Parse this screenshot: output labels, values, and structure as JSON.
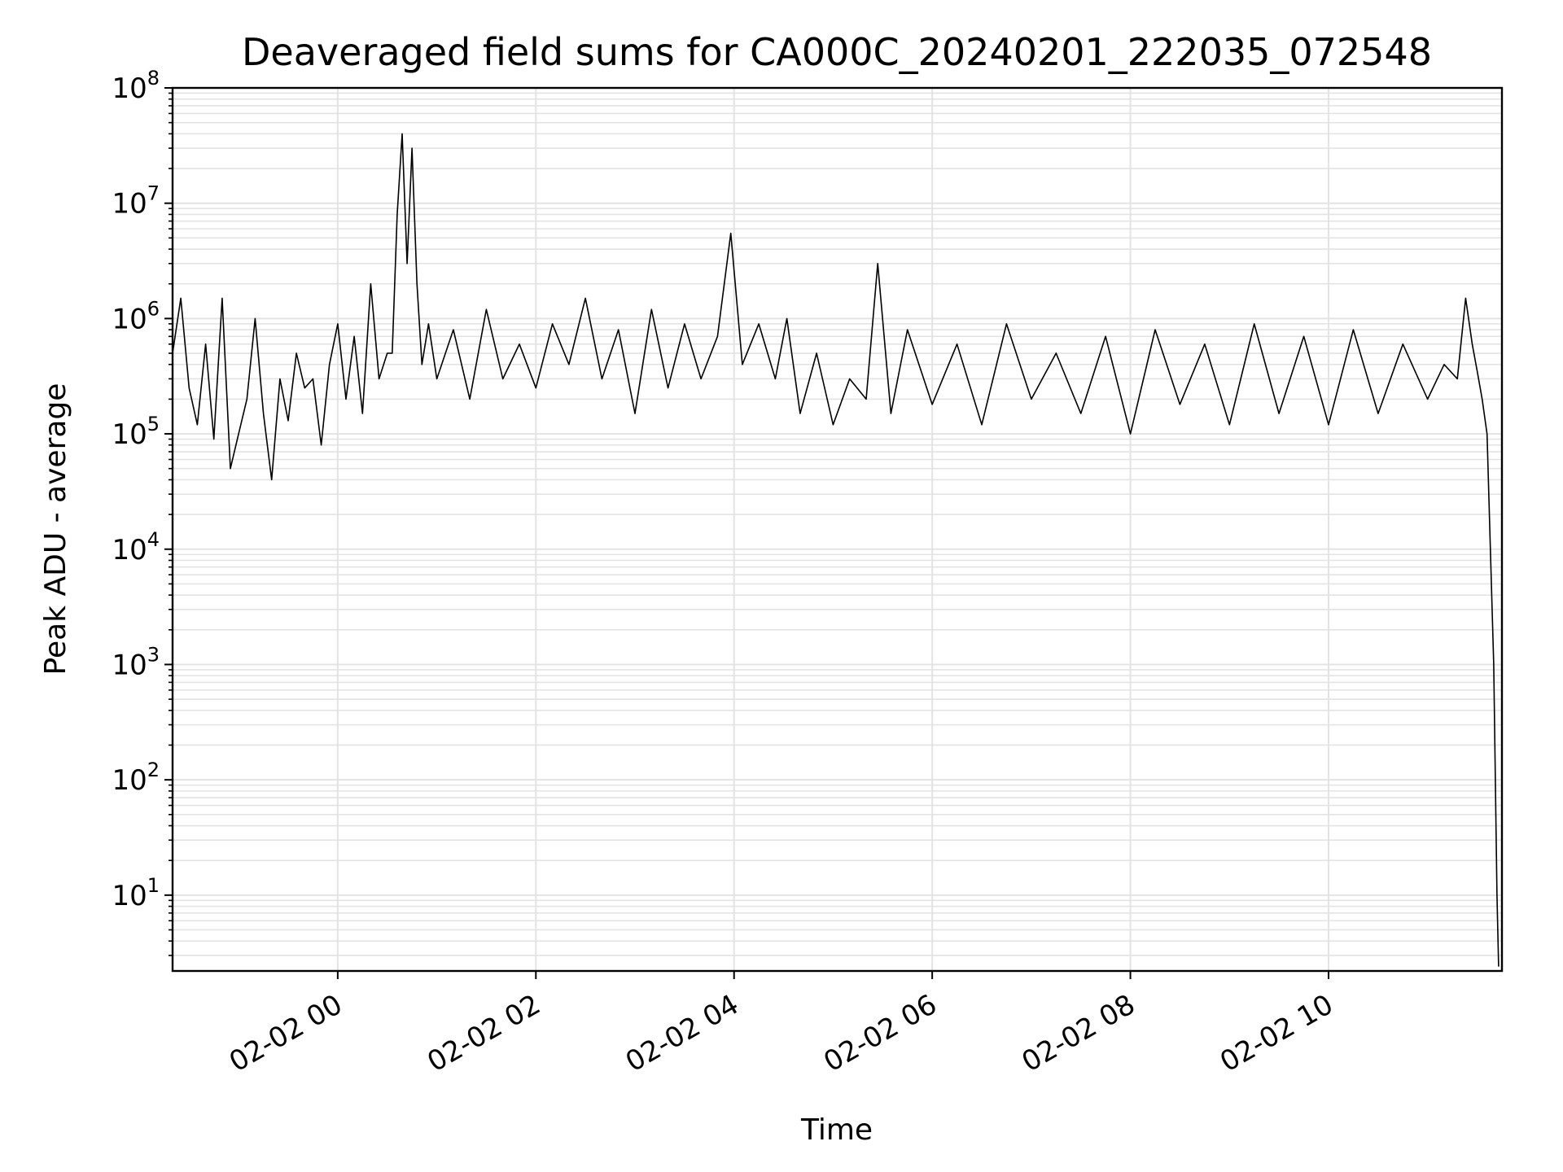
{
  "chart_data": {
    "type": "line",
    "title": "Deaveraged field sums for CA000C_20240201_222035_072548",
    "xlabel": "Time",
    "ylabel": "Peak ADU - average",
    "yscale": "log",
    "ylim": [
      2.2,
      100000000
    ],
    "xlim": [
      "2024-02-01 22:20",
      "2024-02-02 11:45"
    ],
    "grid": true,
    "line_color": "#000000",
    "grid_color": "#e3e3e3",
    "x_ticks": [
      {
        "t": "2024-02-02 00:00",
        "label": "02-02 00"
      },
      {
        "t": "2024-02-02 02:00",
        "label": "02-02 02"
      },
      {
        "t": "2024-02-02 04:00",
        "label": "02-02 04"
      },
      {
        "t": "2024-02-02 06:00",
        "label": "02-02 06"
      },
      {
        "t": "2024-02-02 08:00",
        "label": "02-02 08"
      },
      {
        "t": "2024-02-02 10:00",
        "label": "02-02 10"
      }
    ],
    "y_ticks": [
      {
        "v": 10,
        "base": "10",
        "exp": "1"
      },
      {
        "v": 100,
        "base": "10",
        "exp": "2"
      },
      {
        "v": 1000,
        "base": "10",
        "exp": "3"
      },
      {
        "v": 10000,
        "base": "10",
        "exp": "4"
      },
      {
        "v": 100000,
        "base": "10",
        "exp": "5"
      },
      {
        "v": 1000000,
        "base": "10",
        "exp": "6"
      },
      {
        "v": 10000000,
        "base": "10",
        "exp": "7"
      },
      {
        "v": 100000000,
        "base": "10",
        "exp": "8"
      }
    ],
    "series": [
      {
        "x": [
          "2024-02-01 22:20",
          "2024-02-01 22:25",
          "2024-02-01 22:30",
          "2024-02-01 22:35",
          "2024-02-01 22:40",
          "2024-02-01 22:45",
          "2024-02-01 22:50",
          "2024-02-01 22:55",
          "2024-02-01 23:00",
          "2024-02-01 23:05",
          "2024-02-01 23:10",
          "2024-02-01 23:15",
          "2024-02-01 23:20",
          "2024-02-01 23:25",
          "2024-02-01 23:30",
          "2024-02-01 23:35",
          "2024-02-01 23:40",
          "2024-02-01 23:45",
          "2024-02-01 23:50",
          "2024-02-01 23:55",
          "2024-02-02 00:00",
          "2024-02-02 00:05",
          "2024-02-02 00:10",
          "2024-02-02 00:15",
          "2024-02-02 00:20",
          "2024-02-02 00:25",
          "2024-02-02 00:30",
          "2024-02-02 00:33",
          "2024-02-02 00:36",
          "2024-02-02 00:39",
          "2024-02-02 00:42",
          "2024-02-02 00:45",
          "2024-02-02 00:48",
          "2024-02-02 00:51",
          "2024-02-02 00:55",
          "2024-02-02 01:00",
          "2024-02-02 01:10",
          "2024-02-02 01:20",
          "2024-02-02 01:30",
          "2024-02-02 01:40",
          "2024-02-02 01:50",
          "2024-02-02 02:00",
          "2024-02-02 02:10",
          "2024-02-02 02:20",
          "2024-02-02 02:30",
          "2024-02-02 02:40",
          "2024-02-02 02:50",
          "2024-02-02 03:00",
          "2024-02-02 03:10",
          "2024-02-02 03:20",
          "2024-02-02 03:30",
          "2024-02-02 03:40",
          "2024-02-02 03:50",
          "2024-02-02 03:58",
          "2024-02-02 04:05",
          "2024-02-02 04:15",
          "2024-02-02 04:25",
          "2024-02-02 04:32",
          "2024-02-02 04:40",
          "2024-02-02 04:50",
          "2024-02-02 05:00",
          "2024-02-02 05:10",
          "2024-02-02 05:20",
          "2024-02-02 05:27",
          "2024-02-02 05:35",
          "2024-02-02 05:45",
          "2024-02-02 06:00",
          "2024-02-02 06:15",
          "2024-02-02 06:30",
          "2024-02-02 06:45",
          "2024-02-02 07:00",
          "2024-02-02 07:15",
          "2024-02-02 07:30",
          "2024-02-02 07:45",
          "2024-02-02 08:00",
          "2024-02-02 08:15",
          "2024-02-02 08:30",
          "2024-02-02 08:45",
          "2024-02-02 09:00",
          "2024-02-02 09:15",
          "2024-02-02 09:30",
          "2024-02-02 09:45",
          "2024-02-02 10:00",
          "2024-02-02 10:15",
          "2024-02-02 10:30",
          "2024-02-02 10:45",
          "2024-02-02 11:00",
          "2024-02-02 11:10",
          "2024-02-02 11:18",
          "2024-02-02 11:23",
          "2024-02-02 11:27",
          "2024-02-02 11:30",
          "2024-02-02 11:33",
          "2024-02-02 11:36",
          "2024-02-02 11:38",
          "2024-02-02 11:40",
          "2024-02-02 11:41",
          "2024-02-02 11:42",
          "2024-02-02 11:43"
        ],
        "y": [
          500000,
          1500000,
          250000,
          120000,
          600000,
          90000,
          1500000,
          50000,
          100000,
          200000,
          1000000,
          150000,
          40000,
          300000,
          130000,
          500000,
          250000,
          300000,
          80000,
          400000,
          900000,
          200000,
          700000,
          150000,
          2000000,
          300000,
          500000,
          500000,
          8000000,
          40000000,
          3000000,
          30000000,
          2000000,
          400000,
          900000,
          300000,
          800000,
          200000,
          1200000,
          300000,
          600000,
          250000,
          900000,
          400000,
          1500000,
          300000,
          800000,
          150000,
          1200000,
          250000,
          900000,
          300000,
          700000,
          5500000,
          400000,
          900000,
          300000,
          1000000,
          150000,
          500000,
          120000,
          300000,
          200000,
          3000000,
          150000,
          800000,
          180000,
          600000,
          120000,
          900000,
          200000,
          500000,
          150000,
          700000,
          100000,
          800000,
          180000,
          600000,
          120000,
          900000,
          150000,
          700000,
          120000,
          800000,
          150000,
          600000,
          200000,
          400000,
          300000,
          1500000,
          600000,
          350000,
          200000,
          100000,
          10000,
          1000,
          100,
          10,
          2.4
        ]
      }
    ]
  }
}
